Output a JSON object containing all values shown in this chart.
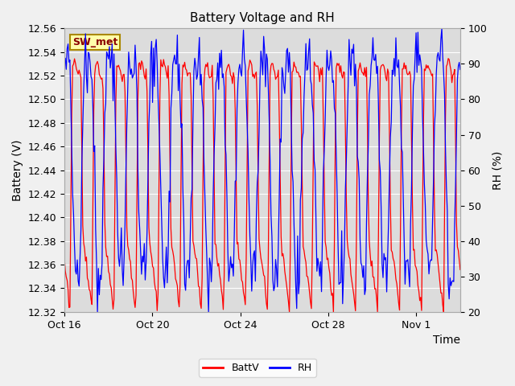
{
  "title": "Battery Voltage and RH",
  "xlabel": "Time",
  "ylabel_left": "Battery (V)",
  "ylabel_right": "RH (%)",
  "ylim_left": [
    12.32,
    12.56
  ],
  "ylim_right": [
    20,
    100
  ],
  "yticks_left": [
    12.32,
    12.34,
    12.36,
    12.38,
    12.4,
    12.42,
    12.44,
    12.46,
    12.48,
    12.5,
    12.52,
    12.54,
    12.56
  ],
  "yticks_right": [
    20,
    30,
    40,
    50,
    60,
    70,
    80,
    90,
    100
  ],
  "xtick_labels": [
    "Oct 16",
    "Oct 20",
    "Oct 24",
    "Oct 28",
    "Nov 1"
  ],
  "station_label": "SW_met",
  "legend_entries": [
    "BattV",
    "RH"
  ],
  "line_colors": [
    "red",
    "blue"
  ],
  "fig_facecolor": "#f0f0f0",
  "plot_facecolor": "#dcdcdc",
  "title_fontsize": 11,
  "axis_fontsize": 10,
  "tick_fontsize": 9
}
